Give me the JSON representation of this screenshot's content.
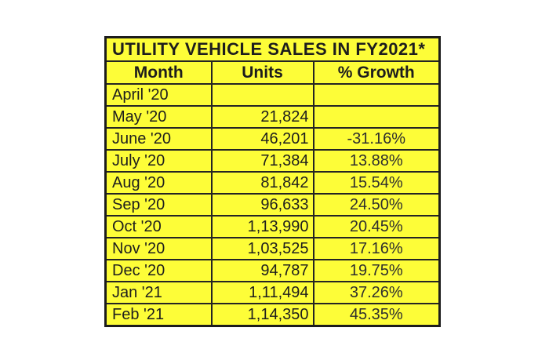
{
  "chart_data": {
    "type": "table",
    "title": "UTILITY VEHICLE SALES IN FY2021*",
    "categories": [
      "April '20",
      "May '20",
      "June '20",
      "July '20",
      "Aug '20",
      "Sep '20",
      "Oct '20",
      "Nov '20",
      "Dec '20",
      "Jan '21",
      "Feb '21"
    ],
    "series": [
      {
        "name": "Units",
        "values": [
          null,
          21824,
          46201,
          71384,
          81842,
          96633,
          113990,
          103525,
          94787,
          111494,
          114350
        ]
      },
      {
        "name": "% Growth",
        "values": [
          null,
          null,
          -31.16,
          13.88,
          15.54,
          24.5,
          20.45,
          17.16,
          19.75,
          37.26,
          45.35
        ]
      }
    ],
    "layout_hints": {
      "grid": "full table borders",
      "fill_color": "#fdfd38",
      "background": "#ffffff"
    }
  },
  "table": {
    "title": "UTILITY VEHICLE SALES IN FY2021*",
    "columns": {
      "month": "Month",
      "units": "Units",
      "growth": "% Growth"
    },
    "rows": [
      {
        "month": "April '20",
        "units": "",
        "growth": ""
      },
      {
        "month": "May '20",
        "units": "21,824",
        "growth": ""
      },
      {
        "month": "June '20",
        "units": "46,201",
        "growth": "-31.16%"
      },
      {
        "month": "July '20",
        "units": "71,384",
        "growth": "13.88%"
      },
      {
        "month": "Aug '20",
        "units": "81,842",
        "growth": "15.54%"
      },
      {
        "month": "Sep '20",
        "units": "96,633",
        "growth": "24.50%"
      },
      {
        "month": "Oct '20",
        "units": "1,13,990",
        "growth": "20.45%"
      },
      {
        "month": "Nov '20",
        "units": "1,03,525",
        "growth": "17.16%"
      },
      {
        "month": "Dec '20",
        "units": "94,787",
        "growth": "19.75%"
      },
      {
        "month": "Jan '21",
        "units": "1,11,494",
        "growth": "37.26%"
      },
      {
        "month": "Feb '21",
        "units": "1,14,350",
        "growth": "45.35%"
      }
    ],
    "colors": {
      "cell_fill": "#fdfd38",
      "border": "#1c1c1c",
      "text": "#1d1d1d",
      "page_background": "#ffffff"
    }
  }
}
